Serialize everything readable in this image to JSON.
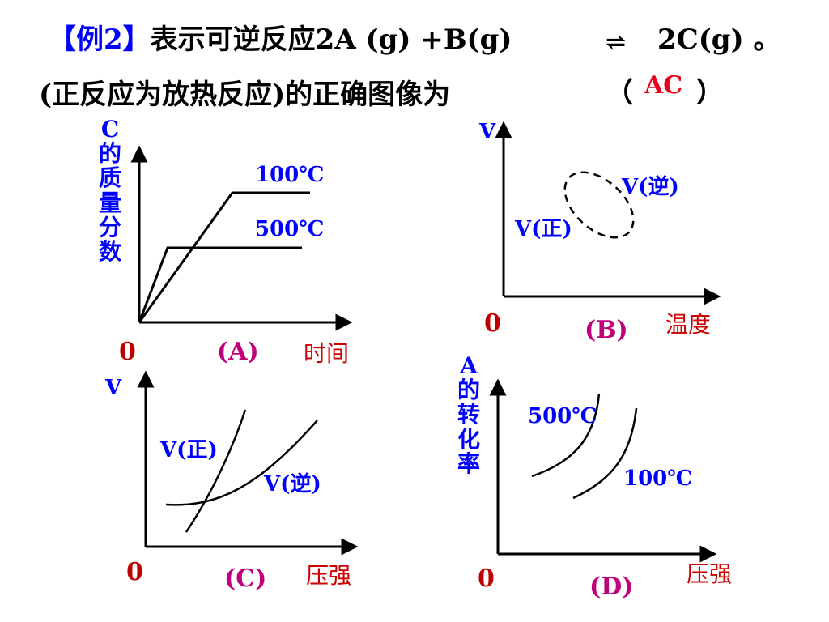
{
  "question": {
    "tag": "【例2】",
    "line1": "表示可逆反应2A (g) +B(g)",
    "eq_arrow": "⇌",
    "line1_end": " 2C(g) 。",
    "line2": "(正反应为放热反应)的正确图像为",
    "paren_open": "（",
    "answer": "AC",
    "paren_close": "）"
  },
  "graph_A": {
    "y_axis_label": "C的质量分数",
    "x_axis_label": "时间",
    "origin": "0",
    "panel_label": "(A)",
    "series": [
      "100℃",
      "500℃"
    ]
  },
  "graph_B": {
    "y_axis_label": "V",
    "x_axis_label": "温度",
    "origin": "0",
    "panel_label": "(B)",
    "series": [
      "V(逆)",
      "V(正)"
    ]
  },
  "graph_C": {
    "y_axis_label": "V",
    "x_axis_label": "压强",
    "origin": "0",
    "panel_label": "(C)",
    "series": [
      "V(正)",
      "V(逆)"
    ]
  },
  "graph_D": {
    "y_axis_label": "A的转化率",
    "x_axis_label": "压强",
    "origin": "0",
    "panel_label": "(D)",
    "series": [
      "500℃",
      "100℃"
    ]
  },
  "colors": {
    "text": "#000000",
    "blue": "#0000ff",
    "answer_red": "#e8001c",
    "axis_label_red": "#cc0000",
    "panel_magenta": "#c0007a"
  }
}
